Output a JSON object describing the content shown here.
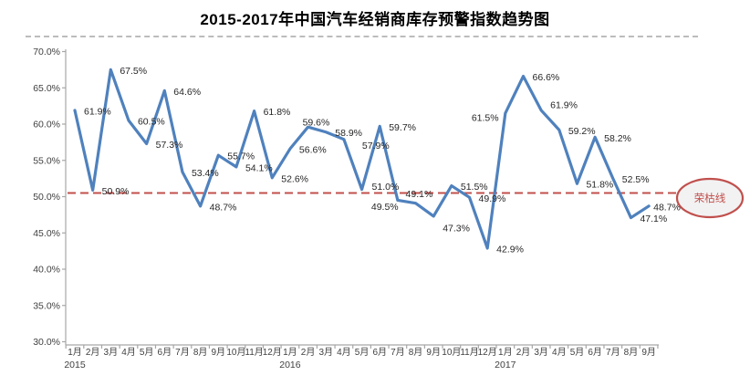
{
  "chart_data": {
    "type": "line",
    "title": "2015-2017年中国汽车经销商库存预警指数趋势图",
    "xlabel": "",
    "ylabel": "",
    "ylim": [
      30,
      70
    ],
    "y_tick_step": 5,
    "y_tick_labels": [
      "70.0%",
      "65.0%",
      "60.0%",
      "55.0%",
      "50.0%",
      "45.0%",
      "40.0%",
      "35.0%",
      "30.0%"
    ],
    "grid": false,
    "legend": "none",
    "categories": [
      "1月",
      "2月",
      "3月",
      "4月",
      "5月",
      "6月",
      "7月",
      "8月",
      "9月",
      "10月",
      "11月",
      "12月",
      "1月",
      "2月",
      "3月",
      "4月",
      "5月",
      "6月",
      "7月",
      "8月",
      "9月",
      "10月",
      "11月",
      "12月",
      "1月",
      "2月",
      "3月",
      "4月",
      "5月",
      "6月",
      "7月",
      "8月",
      "9月"
    ],
    "year_markers": [
      {
        "index": 0,
        "label": "2015"
      },
      {
        "index": 12,
        "label": "2016"
      },
      {
        "index": 24,
        "label": "2017"
      }
    ],
    "series": [
      {
        "values": [
          61.9,
          50.9,
          67.5,
          60.5,
          57.3,
          64.6,
          53.4,
          48.7,
          55.7,
          54.1,
          61.8,
          52.6,
          56.6,
          59.6,
          58.9,
          57.9,
          51.0,
          59.7,
          49.5,
          49.1,
          47.3,
          51.5,
          49.9,
          42.9,
          61.5,
          66.6,
          61.9,
          59.2,
          51.8,
          58.2,
          52.5,
          47.1,
          48.7
        ],
        "labels": [
          "61.9%",
          "50.9%",
          "67.5%",
          "60.5%",
          "57.3%",
          "64.6%",
          "53.4%",
          "48.7%",
          "55.7%",
          "54.1%",
          "61.8%",
          "52.6%",
          "56.6%",
          "59.6%",
          "58.9%",
          "57.9%",
          "51.0%",
          "59.7%",
          "49.5%",
          "49.1%",
          "47.3%",
          "51.5%",
          "49.9%",
          "42.9%",
          "61.5%",
          "66.6%",
          "61.9%",
          "59.2%",
          "51.8%",
          "58.2%",
          "52.5%",
          "47.1%",
          "48.7%"
        ],
        "color": "#4f81bd"
      }
    ],
    "label_offsets": {
      "13": [
        -6,
        -5
      ],
      "15": [
        20,
        7
      ],
      "16": [
        11,
        -3
      ],
      "18": [
        -29,
        7
      ],
      "19": [
        -11,
        -10
      ],
      "20": [
        10,
        13
      ],
      "24": [
        -37,
        5
      ],
      "26": [
        10,
        -6
      ],
      "32": [
        5,
        1
      ]
    },
    "threshold_line": {
      "label": "荣枯线",
      "value": 50.5,
      "color": "#c0504d",
      "badge_fill": "#f2f2f2"
    },
    "colors": {
      "line": "#4f81bd",
      "axis": "#a6a6a6",
      "tick_text": "#404040",
      "data_label": "#262626"
    }
  }
}
